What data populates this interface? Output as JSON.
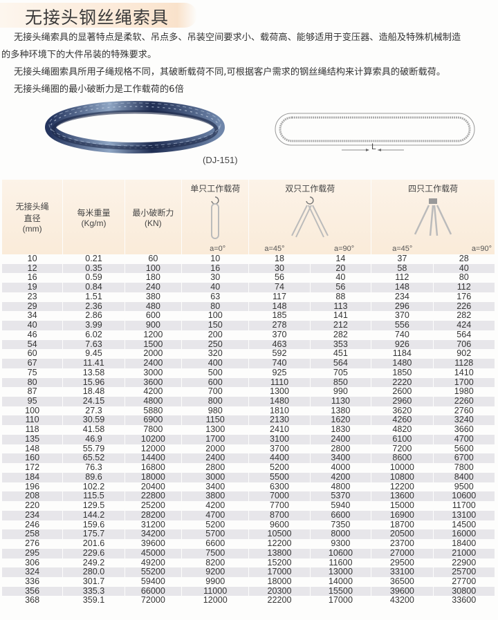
{
  "title": "无接头钢丝绳索具",
  "paragraphs": [
    "无接头绳索具的显著特点是柔软、吊点多、吊装空间要求小、载荷高、能够适用于变压器、造船及特殊机械制造",
    "的多种环境下的大件吊装的特殊要求。",
    "无接头绳圈索具所用子绳规格不同，其破断载荷不同,可根据客户需求的钢丝绳结构来计算索具的破断载荷。",
    "无接头绳圈的最小破断力是工作载荷的6倍"
  ],
  "product_caption": "(DJ-151)",
  "diagram_label": "L",
  "colors": {
    "header_bg": "#faebd9",
    "alt_row": "#e7e6ea",
    "rope": "#2d3f6b"
  },
  "table": {
    "headers": {
      "diameter": [
        "无接头绳",
        "直径",
        "(mm)"
      ],
      "weight": [
        "每米重量",
        "(Kg/m)"
      ],
      "break_force": [
        "最小破断力",
        "(KN)"
      ],
      "single": "单只工作载荷",
      "double": "双只工作载荷",
      "quad": "四只工作载荷",
      "angles": [
        "a=0°",
        "a=45°",
        "a=90°",
        "a=45°",
        "a=90°"
      ]
    },
    "rows": [
      [
        "10",
        "0.21",
        "60",
        "10",
        "18",
        "14",
        "37",
        "28"
      ],
      [
        "12",
        "0.35",
        "100",
        "16",
        "30",
        "20",
        "58",
        "40"
      ],
      [
        "16",
        "0.59",
        "180",
        "30",
        "56",
        "40",
        "112",
        "80"
      ],
      [
        "19",
        "0.84",
        "240",
        "40",
        "74",
        "56",
        "148",
        "112"
      ],
      [
        "23",
        "1.51",
        "380",
        "63",
        "117",
        "88",
        "234",
        "176"
      ],
      [
        "29",
        "2.36",
        "480",
        "80",
        "148",
        "113",
        "296",
        "226"
      ],
      [
        "34",
        "2.86",
        "600",
        "100",
        "185",
        "141",
        "370",
        "282"
      ],
      [
        "40",
        "3.99",
        "900",
        "150",
        "278",
        "212",
        "556",
        "424"
      ],
      [
        "46",
        "6.02",
        "1200",
        "200",
        "370",
        "282",
        "740",
        "564"
      ],
      [
        "54",
        "7.63",
        "1500",
        "250",
        "463",
        "353",
        "926",
        "706"
      ],
      [
        "60",
        "9.45",
        "2000",
        "320",
        "592",
        "451",
        "1184",
        "902"
      ],
      [
        "67",
        "11.41",
        "2400",
        "400",
        "740",
        "564",
        "1480",
        "1128"
      ],
      [
        "75",
        "13.58",
        "3000",
        "500",
        "925",
        "705",
        "1850",
        "1410"
      ],
      [
        "80",
        "15.96",
        "3600",
        "600",
        "1110",
        "850",
        "2220",
        "1700"
      ],
      [
        "87",
        "18.48",
        "4200",
        "700",
        "1300",
        "990",
        "2600",
        "1980"
      ],
      [
        "95",
        "24.15",
        "4800",
        "800",
        "1480",
        "1130",
        "2960",
        "2260"
      ],
      [
        "100",
        "27.3",
        "5880",
        "980",
        "1810",
        "1380",
        "3620",
        "2760"
      ],
      [
        "110",
        "30.59",
        "6900",
        "1150",
        "2130",
        "1620",
        "4260",
        "3240"
      ],
      [
        "118",
        "41.58",
        "7800",
        "1300",
        "2410",
        "1830",
        "4820",
        "3660"
      ],
      [
        "135",
        "46.9",
        "10200",
        "1700",
        "3100",
        "2400",
        "6100",
        "4700"
      ],
      [
        "148",
        "55.79",
        "12000",
        "2000",
        "3700",
        "2800",
        "7200",
        "5600"
      ],
      [
        "160",
        "65.52",
        "14400",
        "2400",
        "4400",
        "3400",
        "8600",
        "6700"
      ],
      [
        "172",
        "76.3",
        "16800",
        "2800",
        "5200",
        "4000",
        "10000",
        "7800"
      ],
      [
        "184",
        "89.6",
        "18000",
        "3000",
        "5500",
        "4200",
        "10800",
        "8400"
      ],
      [
        "196",
        "102.2",
        "20400",
        "3400",
        "6300",
        "4800",
        "12200",
        "9500"
      ],
      [
        "208",
        "115.5",
        "22800",
        "3800",
        "7000",
        "5370",
        "13600",
        "10600"
      ],
      [
        "220",
        "129.5",
        "25200",
        "4200",
        "7700",
        "5940",
        "15000",
        "11700"
      ],
      [
        "234",
        "144.2",
        "28200",
        "4700",
        "8700",
        "6600",
        "16900",
        "13100"
      ],
      [
        "246",
        "159.6",
        "31200",
        "5200",
        "9600",
        "7350",
        "18700",
        "14500"
      ],
      [
        "258",
        "175.7",
        "34200",
        "5700",
        "10500",
        "8000",
        "20500",
        "16000"
      ],
      [
        "276",
        "201.6",
        "39600",
        "6600",
        "12200",
        "9300",
        "23700",
        "18400"
      ],
      [
        "295",
        "229.6",
        "45000",
        "7500",
        "13800",
        "10600",
        "27000",
        "21000"
      ],
      [
        "306",
        "249.2",
        "49200",
        "8200",
        "15200",
        "11600",
        "29500",
        "22900"
      ],
      [
        "324",
        "280.0",
        "55200",
        "9200",
        "17000",
        "13000",
        "33100",
        "25700"
      ],
      [
        "336",
        "301.7",
        "59400",
        "9900",
        "18000",
        "14000",
        "36500",
        "27700"
      ],
      [
        "356",
        "335.3",
        "66000",
        "11000",
        "20300",
        "15500",
        "39600",
        "30800"
      ],
      [
        "368",
        "359.1",
        "72000",
        "12000",
        "22200",
        "17000",
        "43200",
        "33600"
      ]
    ]
  }
}
